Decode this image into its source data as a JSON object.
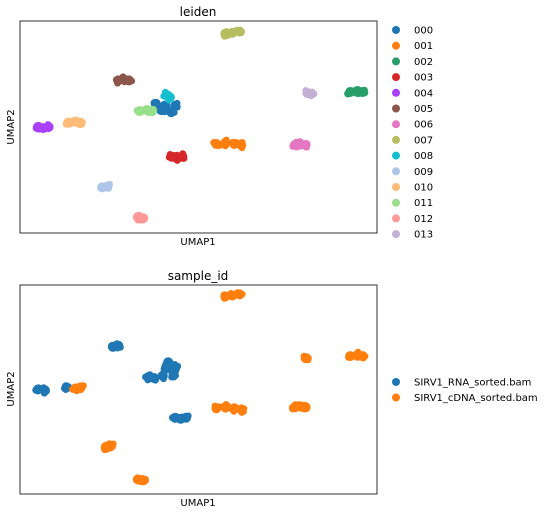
{
  "chart_data": [
    {
      "type": "scatter",
      "title": "leiden",
      "xlabel": "UMAP1",
      "ylabel": "UMAP2",
      "grid": false,
      "xlim": [
        0,
        10
      ],
      "ylim": [
        0,
        10
      ],
      "legend_position": "right",
      "series": [
        {
          "name": "000",
          "color": "#1f77b4",
          "x": [
            3.8,
            4.05,
            4.35,
            4.0,
            4.25
          ],
          "y": [
            6.1,
            6.0,
            6.0,
            5.8,
            5.75
          ]
        },
        {
          "name": "001",
          "color": "#ff7f0e",
          "x": [
            5.5,
            5.75,
            6.0,
            6.2
          ],
          "y": [
            4.2,
            4.25,
            4.2,
            4.15
          ]
        },
        {
          "name": "002",
          "color": "#279e68",
          "x": [
            9.25,
            9.45,
            9.6
          ],
          "y": [
            6.65,
            6.7,
            6.65
          ]
        },
        {
          "name": "003",
          "color": "#d62728",
          "x": [
            4.25,
            4.4,
            4.55
          ],
          "y": [
            3.6,
            3.55,
            3.6
          ]
        },
        {
          "name": "004",
          "color": "#aa40fc",
          "x": [
            0.5,
            0.65,
            0.8
          ],
          "y": [
            5.0,
            4.95,
            5.0
          ]
        },
        {
          "name": "005",
          "color": "#8c564b",
          "x": [
            2.75,
            2.9,
            3.05
          ],
          "y": [
            7.2,
            7.25,
            7.2
          ]
        },
        {
          "name": "006",
          "color": "#e377c2",
          "x": [
            7.7,
            7.85,
            8.0
          ],
          "y": [
            4.15,
            4.2,
            4.15
          ]
        },
        {
          "name": "007",
          "color": "#b5bd61",
          "x": [
            5.75,
            5.95,
            6.15
          ],
          "y": [
            9.4,
            9.45,
            9.5
          ]
        },
        {
          "name": "008",
          "color": "#17becf",
          "x": [
            4.1,
            4.2
          ],
          "y": [
            6.5,
            6.4
          ]
        },
        {
          "name": "009",
          "color": "#aec7e8",
          "x": [
            2.3,
            2.45
          ],
          "y": [
            2.15,
            2.2
          ]
        },
        {
          "name": "010",
          "color": "#ffbb78",
          "x": [
            1.35,
            1.55,
            1.7
          ],
          "y": [
            5.2,
            5.25,
            5.2
          ]
        },
        {
          "name": "011",
          "color": "#98df8a",
          "x": [
            3.35,
            3.55,
            3.7
          ],
          "y": [
            5.75,
            5.8,
            5.75
          ]
        },
        {
          "name": "012",
          "color": "#ff9896",
          "x": [
            3.3,
            3.45
          ],
          "y": [
            0.75,
            0.7
          ]
        },
        {
          "name": "013",
          "color": "#c5b0d5",
          "x": [
            8.05,
            8.15
          ],
          "y": [
            6.6,
            6.55
          ]
        }
      ]
    },
    {
      "type": "scatter",
      "title": "sample_id",
      "xlabel": "UMAP1",
      "ylabel": "UMAP2",
      "grid": false,
      "xlim": [
        0,
        10
      ],
      "ylim": [
        0,
        10
      ],
      "legend_position": "right",
      "series": [
        {
          "name": "SIRV1_RNA_sorted.bam",
          "color": "#1f77b4",
          "x": [
            2.6,
            2.75,
            4.1,
            4.35,
            4.0,
            4.3,
            4.15,
            3.6,
            3.75,
            0.5,
            0.7,
            1.3,
            4.35,
            4.5,
            4.65
          ],
          "y": [
            7.05,
            7.1,
            6.0,
            6.05,
            5.65,
            5.7,
            6.3,
            5.6,
            5.55,
            5.0,
            4.95,
            5.1,
            3.65,
            3.6,
            3.65
          ]
        },
        {
          "name": "SIRV1_cDNA_sorted.bam",
          "color": "#ff7f0e",
          "x": [
            5.75,
            5.95,
            6.15,
            9.25,
            9.45,
            9.6,
            8.0,
            5.5,
            5.75,
            6.0,
            6.2,
            7.7,
            7.85,
            8.0,
            1.55,
            1.7,
            2.4,
            2.55,
            3.3,
            3.45
          ],
          "y": [
            9.45,
            9.5,
            9.55,
            6.6,
            6.65,
            6.6,
            6.5,
            4.1,
            4.15,
            4.1,
            4.05,
            4.15,
            4.2,
            4.15,
            5.05,
            5.1,
            2.25,
            2.3,
            0.7,
            0.65
          ]
        }
      ]
    }
  ]
}
